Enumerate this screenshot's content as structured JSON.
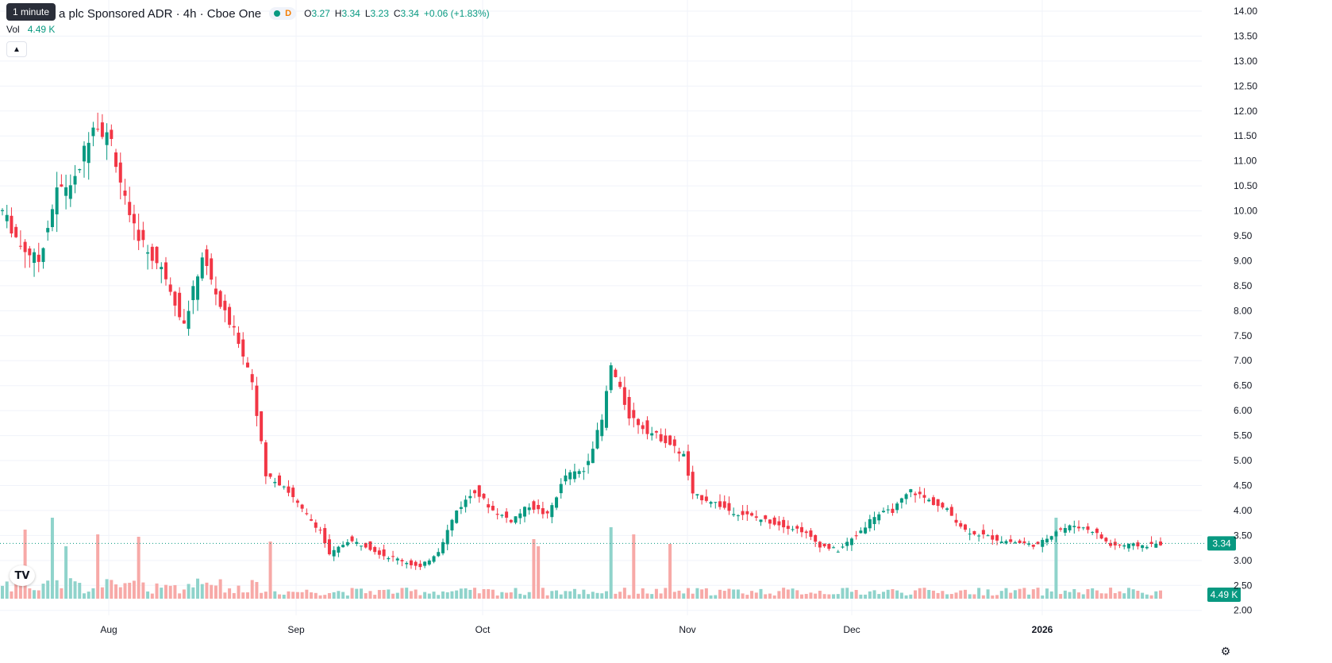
{
  "tooltip": "1 minute",
  "header": {
    "symbol_title": "a plc Sponsored ADR · 4h · Cboe One",
    "session_badge": "D",
    "ohlc": {
      "o_label": "O",
      "o_value": "3.27",
      "h_label": "H",
      "h_value": "3.34",
      "l_label": "L",
      "l_value": "3.23",
      "c_label": "C",
      "c_value": "3.34",
      "change": "+0.06 (+1.83%)"
    }
  },
  "volume_legend": {
    "label": "Vol",
    "value": "4.49 K"
  },
  "icons": {
    "collapse": "chevron-up-icon",
    "logo": "tradingview-logo-icon",
    "settings": "gear-icon"
  },
  "logo_text": "TV",
  "colors": {
    "up": "#089981",
    "down": "#f23645",
    "up_volume": "#8fd3cb",
    "down_volume": "#f7a9a7",
    "grid": "#f0f3fa",
    "last_price": "#089981"
  },
  "chart_data": {
    "type": "candlestick",
    "interval": "4h",
    "ylim": [
      1.9,
      14.0
    ],
    "yticks": [
      "14.00",
      "13.50",
      "13.00",
      "12.50",
      "12.00",
      "11.50",
      "11.00",
      "10.50",
      "10.00",
      "9.50",
      "9.00",
      "8.50",
      "8.00",
      "7.50",
      "7.00",
      "6.50",
      "6.00",
      "5.50",
      "5.00",
      "4.50",
      "4.00",
      "3.50",
      "3.00",
      "2.50",
      "2.00"
    ],
    "xticks": [
      "Aug",
      "Sep",
      "Oct",
      "Nov",
      "Dec",
      "2026"
    ],
    "last_price": 3.34,
    "last_price_label": "3.34",
    "last_volume_label": "4.49 K",
    "anchors": [
      [
        0,
        10.0
      ],
      [
        4,
        9.3
      ],
      [
        8,
        9.0
      ],
      [
        12,
        10.4
      ],
      [
        16,
        10.6
      ],
      [
        20,
        11.8
      ],
      [
        24,
        11.4
      ],
      [
        28,
        9.8
      ],
      [
        32,
        9.2
      ],
      [
        36,
        8.7
      ],
      [
        40,
        7.7
      ],
      [
        44,
        9.1
      ],
      [
        48,
        8.1
      ],
      [
        52,
        7.4
      ],
      [
        55,
        6.6
      ],
      [
        58,
        4.7
      ],
      [
        62,
        4.5
      ],
      [
        66,
        4.0
      ],
      [
        70,
        3.6
      ],
      [
        72,
        3.1
      ],
      [
        76,
        3.4
      ],
      [
        80,
        3.3
      ],
      [
        84,
        3.1
      ],
      [
        88,
        3.0
      ],
      [
        92,
        2.85
      ],
      [
        96,
        3.2
      ],
      [
        100,
        4.0
      ],
      [
        104,
        4.4
      ],
      [
        108,
        4.0
      ],
      [
        112,
        3.8
      ],
      [
        116,
        4.1
      ],
      [
        120,
        3.9
      ],
      [
        124,
        4.7
      ],
      [
        128,
        4.8
      ],
      [
        132,
        5.8
      ],
      [
        134,
        6.9
      ],
      [
        138,
        5.9
      ],
      [
        142,
        5.6
      ],
      [
        146,
        5.4
      ],
      [
        150,
        5.1
      ],
      [
        152,
        4.3
      ],
      [
        156,
        4.2
      ],
      [
        160,
        4.0
      ],
      [
        164,
        3.9
      ],
      [
        168,
        3.8
      ],
      [
        172,
        3.7
      ],
      [
        176,
        3.6
      ],
      [
        180,
        3.3
      ],
      [
        184,
        3.2
      ],
      [
        188,
        3.5
      ],
      [
        192,
        3.9
      ],
      [
        196,
        4.0
      ],
      [
        200,
        4.4
      ],
      [
        204,
        4.2
      ],
      [
        208,
        4.0
      ],
      [
        212,
        3.6
      ],
      [
        216,
        3.5
      ],
      [
        220,
        3.4
      ],
      [
        224,
        3.35
      ],
      [
        228,
        3.3
      ],
      [
        232,
        3.6
      ],
      [
        236,
        3.7
      ],
      [
        240,
        3.6
      ],
      [
        244,
        3.3
      ],
      [
        248,
        3.3
      ],
      [
        252,
        3.3
      ],
      [
        255,
        3.34
      ]
    ],
    "volume_spikes": [
      [
        5,
        2.9
      ],
      [
        11,
        3.4
      ],
      [
        14,
        2.2
      ],
      [
        21,
        2.7
      ],
      [
        30,
        2.6
      ],
      [
        59,
        2.4
      ],
      [
        117,
        2.5
      ],
      [
        118,
        2.2
      ],
      [
        134,
        3.0
      ],
      [
        139,
        2.7
      ],
      [
        147,
        2.3
      ],
      [
        232,
        3.4
      ]
    ]
  }
}
